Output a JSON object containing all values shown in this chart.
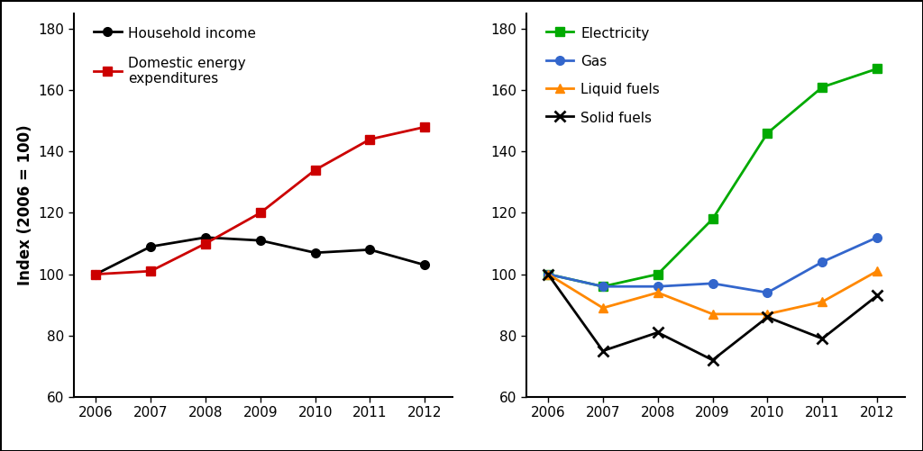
{
  "years": [
    2006,
    2007,
    2008,
    2009,
    2010,
    2011,
    2012
  ],
  "household_income": [
    100,
    109,
    112,
    111,
    107,
    108,
    103
  ],
  "domestic_energy": [
    100,
    101,
    110,
    120,
    134,
    144,
    148
  ],
  "electricity": [
    100,
    96,
    100,
    118,
    146,
    161,
    167
  ],
  "gas": [
    100,
    96,
    96,
    97,
    94,
    104,
    112
  ],
  "liquid_fuels": [
    100,
    89,
    94,
    87,
    87,
    91,
    101
  ],
  "solid_fuels": [
    100,
    75,
    81,
    72,
    86,
    79,
    93
  ],
  "ylim": [
    60,
    185
  ],
  "yticks": [
    60,
    80,
    100,
    120,
    140,
    160,
    180
  ],
  "ylabel": "Index (2006 = 100)",
  "label_household": "Household income",
  "label_domestic": "Domestic energy\nexpenditures",
  "label_electricity": "Electricity",
  "label_gas": "Gas",
  "label_liquid": "Liquid fuels",
  "label_solid": "Solid fuels",
  "color_household": "#000000",
  "color_domestic": "#cc0000",
  "color_electricity": "#00aa00",
  "color_gas": "#3366cc",
  "color_liquid": "#ff8800",
  "color_solid": "#000000",
  "figsize": [
    10.24,
    5.01
  ],
  "dpi": 100,
  "tick_fontsize": 11,
  "label_fontsize": 12,
  "legend_fontsize": 11,
  "linewidth": 2.0,
  "markersize": 7
}
